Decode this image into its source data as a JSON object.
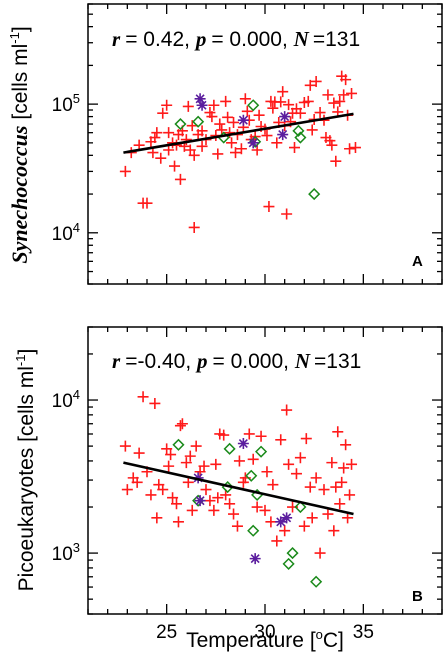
{
  "chart_data": [
    {
      "panel": "A",
      "type": "scatter",
      "ylabel": "Synechococcus [cells ml-1]",
      "ylabel_parts": {
        "italic": "Synechococcus",
        "unit": "[cells ml",
        "sup": "-1",
        "close": "]"
      },
      "stats": {
        "r_label": "r",
        "r_value": "= 0.42, ",
        "p_label": "p",
        "p_value": "= 0.000, ",
        "n_label": "N",
        "n_value": "=131"
      },
      "panel_letter": "A",
      "xlim": [
        21,
        39
      ],
      "ylim": [
        4000,
        600000
      ],
      "yscale": "log",
      "yticks": [
        {
          "value": 10000,
          "base": "10",
          "exp": "4"
        },
        {
          "value": 100000,
          "base": "10",
          "exp": "5"
        }
      ],
      "fit_line": {
        "x": [
          22.8,
          34.5
        ],
        "y": [
          42000,
          84000
        ]
      },
      "series": [
        {
          "marker": "plus",
          "color": "#ff1a1a",
          "points": [
            [
              22.9,
              30000
            ],
            [
              23.2,
              42000
            ],
            [
              23.6,
              48000
            ],
            [
              23.8,
              17000
            ],
            [
              24.0,
              17000
            ],
            [
              24.2,
              51000
            ],
            [
              24.3,
              42000
            ],
            [
              24.4,
              55000
            ],
            [
              24.5,
              60000
            ],
            [
              24.7,
              38000
            ],
            [
              24.8,
              85000
            ],
            [
              25.0,
              98000
            ],
            [
              25.1,
              44000
            ],
            [
              25.1,
              60000
            ],
            [
              25.3,
              50000
            ],
            [
              25.4,
              33000
            ],
            [
              25.5,
              48000
            ],
            [
              25.6,
              58000
            ],
            [
              25.7,
              26000
            ],
            [
              25.8,
              62000
            ],
            [
              25.9,
              47000
            ],
            [
              26.0,
              53000
            ],
            [
              26.1,
              96000
            ],
            [
              26.2,
              44000
            ],
            [
              26.3,
              68000
            ],
            [
              26.4,
              11000
            ],
            [
              26.4,
              40000
            ],
            [
              26.6,
              58000
            ],
            [
              26.8,
              47000
            ],
            [
              26.8,
              62000
            ],
            [
              27.0,
              53000
            ],
            [
              27.2,
              86000
            ],
            [
              27.3,
              80000
            ],
            [
              27.4,
              98000
            ],
            [
              27.5,
              57000
            ],
            [
              27.6,
              41000
            ],
            [
              27.7,
              70000
            ],
            [
              27.8,
              63000
            ],
            [
              28.0,
              105000
            ],
            [
              28.1,
              79000
            ],
            [
              28.2,
              60000
            ],
            [
              28.3,
              50000
            ],
            [
              28.4,
              72000
            ],
            [
              28.5,
              42000
            ],
            [
              28.6,
              58000
            ],
            [
              28.8,
              45000
            ],
            [
              28.9,
              66000
            ],
            [
              29.0,
              110000
            ],
            [
              29.1,
              88000
            ],
            [
              29.2,
              75000
            ],
            [
              29.3,
              53000
            ],
            [
              29.5,
              56000
            ],
            [
              29.6,
              44000
            ],
            [
              29.7,
              82000
            ],
            [
              29.8,
              67000
            ],
            [
              30.0,
              64000
            ],
            [
              30.1,
              57000
            ],
            [
              30.2,
              16000
            ],
            [
              30.3,
              105000
            ],
            [
              30.4,
              93000
            ],
            [
              30.5,
              104000
            ],
            [
              30.6,
              50000
            ],
            [
              30.7,
              72000
            ],
            [
              30.8,
              104000
            ],
            [
              30.9,
              125000
            ],
            [
              31.0,
              68000
            ],
            [
              31.1,
              14000
            ],
            [
              31.2,
              99000
            ],
            [
              31.3,
              73000
            ],
            [
              31.4,
              85000
            ],
            [
              31.5,
              46000
            ],
            [
              31.6,
              92000
            ],
            [
              31.8,
              85000
            ],
            [
              32.0,
              103000
            ],
            [
              32.2,
              105000
            ],
            [
              32.3,
              140000
            ],
            [
              32.4,
              63000
            ],
            [
              32.5,
              76000
            ],
            [
              32.6,
              150000
            ],
            [
              32.8,
              86000
            ],
            [
              33.0,
              75000
            ],
            [
              33.1,
              55000
            ],
            [
              33.2,
              118000
            ],
            [
              33.3,
              52000
            ],
            [
              33.4,
              48000
            ],
            [
              33.5,
              102000
            ],
            [
              33.6,
              36000
            ],
            [
              33.7,
              87000
            ],
            [
              33.8,
              105000
            ],
            [
              33.9,
              165000
            ],
            [
              34.0,
              118000
            ],
            [
              34.1,
              155000
            ],
            [
              34.2,
              82000
            ],
            [
              34.3,
              45000
            ],
            [
              34.4,
              121000
            ],
            [
              34.6,
              46000
            ]
          ]
        },
        {
          "marker": "diamond",
          "color": "#1a8a1a",
          "points": [
            [
              25.7,
              70000
            ],
            [
              26.6,
              73000
            ],
            [
              27.9,
              55000
            ],
            [
              29.4,
              98000
            ],
            [
              29.5,
              51000
            ],
            [
              31.7,
              62000
            ],
            [
              31.8,
              55000
            ],
            [
              32.5,
              20000
            ]
          ]
        },
        {
          "marker": "star",
          "color": "#5b1d9e",
          "points": [
            [
              26.7,
              110000
            ],
            [
              26.8,
              98000
            ],
            [
              28.9,
              75000
            ],
            [
              29.4,
              50000
            ],
            [
              30.9,
              58000
            ],
            [
              31.0,
              80000
            ]
          ]
        }
      ]
    },
    {
      "panel": "B",
      "type": "scatter",
      "xlabel": "Temperature [oC]",
      "xlabel_parts": {
        "text": "Temperature [",
        "sup": "o",
        "close": "C]"
      },
      "ylabel": "Picoeukaryotes [cells ml-1]",
      "ylabel_parts": {
        "unit": "Picoeukaryotes [cells ml",
        "sup": "-1",
        "close": "]"
      },
      "stats": {
        "r_label": "r",
        "r_value": "=-0.40, ",
        "p_label": "p",
        "p_value": "= 0.000, ",
        "n_label": "N",
        "n_value": "=131"
      },
      "panel_letter": "B",
      "xlim": [
        21,
        39
      ],
      "xticks": [
        "25",
        "30",
        "35"
      ],
      "ylim": [
        400,
        30000
      ],
      "yscale": "log",
      "yticks": [
        {
          "value": 1000,
          "base": "10",
          "exp": "3"
        },
        {
          "value": 10000,
          "base": "10",
          "exp": "4"
        }
      ],
      "fit_line": {
        "x": [
          22.8,
          34.5
        ],
        "y": [
          3900,
          1800
        ]
      },
      "series": [
        {
          "marker": "plus",
          "color": "#ff1a1a",
          "points": [
            [
              22.9,
              5000
            ],
            [
              23.0,
              2600
            ],
            [
              23.3,
              3100
            ],
            [
              23.5,
              2900
            ],
            [
              23.6,
              4500
            ],
            [
              23.8,
              10500
            ],
            [
              24.0,
              3400
            ],
            [
              24.2,
              2400
            ],
            [
              24.4,
              9500
            ],
            [
              24.5,
              1700
            ],
            [
              24.6,
              2800
            ],
            [
              24.8,
              2600
            ],
            [
              25.0,
              4800
            ],
            [
              25.1,
              3700
            ],
            [
              25.2,
              4400
            ],
            [
              25.3,
              2300
            ],
            [
              25.5,
              2100
            ],
            [
              25.6,
              1600
            ],
            [
              25.7,
              6800
            ],
            [
              25.8,
              7000
            ],
            [
              26.0,
              3900
            ],
            [
              26.1,
              2900
            ],
            [
              26.2,
              4300
            ],
            [
              26.3,
              1900
            ],
            [
              26.5,
              5000
            ],
            [
              26.7,
              3400
            ],
            [
              26.9,
              3700
            ],
            [
              27.0,
              2600
            ],
            [
              27.2,
              2200
            ],
            [
              27.4,
              1900
            ],
            [
              27.5,
              3800
            ],
            [
              27.6,
              2300
            ],
            [
              27.7,
              6000
            ],
            [
              27.9,
              5900
            ],
            [
              28.0,
              2400
            ],
            [
              28.2,
              2100
            ],
            [
              28.4,
              1800
            ],
            [
              28.6,
              1500
            ],
            [
              28.7,
              4000
            ],
            [
              28.9,
              2900
            ],
            [
              29.0,
              3100
            ],
            [
              29.2,
              6000
            ],
            [
              29.4,
              4100
            ],
            [
              29.6,
              2000
            ],
            [
              29.8,
              5800
            ],
            [
              30.0,
              1900
            ],
            [
              30.1,
              3400
            ],
            [
              30.3,
              1600
            ],
            [
              30.4,
              2800
            ],
            [
              30.6,
              1200
            ],
            [
              30.8,
              5500
            ],
            [
              31.0,
              1400
            ],
            [
              31.1,
              8600
            ],
            [
              31.2,
              3800
            ],
            [
              31.4,
              2000
            ],
            [
              31.6,
              3300
            ],
            [
              31.8,
              4200
            ],
            [
              32.0,
              1500
            ],
            [
              32.1,
              5600
            ],
            [
              32.3,
              2700
            ],
            [
              32.4,
              1700
            ],
            [
              32.6,
              3100
            ],
            [
              32.8,
              1000
            ],
            [
              33.0,
              2600
            ],
            [
              33.2,
              1800
            ],
            [
              33.4,
              3900
            ],
            [
              33.5,
              1400
            ],
            [
              33.6,
              2700
            ],
            [
              33.7,
              6200
            ],
            [
              33.8,
              2100
            ],
            [
              33.9,
              2900
            ],
            [
              34.0,
              3600
            ],
            [
              34.1,
              5100
            ],
            [
              34.2,
              1700
            ],
            [
              34.3,
              2400
            ],
            [
              34.4,
              3800
            ]
          ]
        },
        {
          "marker": "diamond",
          "color": "#1a8a1a",
          "points": [
            [
              25.6,
              5100
            ],
            [
              26.6,
              2200
            ],
            [
              28.1,
              2700
            ],
            [
              28.2,
              4800
            ],
            [
              29.3,
              3200
            ],
            [
              29.4,
              1400
            ],
            [
              29.6,
              2400
            ],
            [
              29.8,
              4600
            ],
            [
              31.2,
              850
            ],
            [
              31.4,
              1000
            ],
            [
              31.8,
              2000
            ],
            [
              32.6,
              650
            ]
          ]
        },
        {
          "marker": "star",
          "color": "#5b1d9e",
          "points": [
            [
              26.6,
              3100
            ],
            [
              26.7,
              2200
            ],
            [
              28.9,
              5200
            ],
            [
              29.5,
              920
            ],
            [
              30.8,
              1600
            ],
            [
              31.1,
              1700
            ]
          ]
        }
      ]
    }
  ]
}
